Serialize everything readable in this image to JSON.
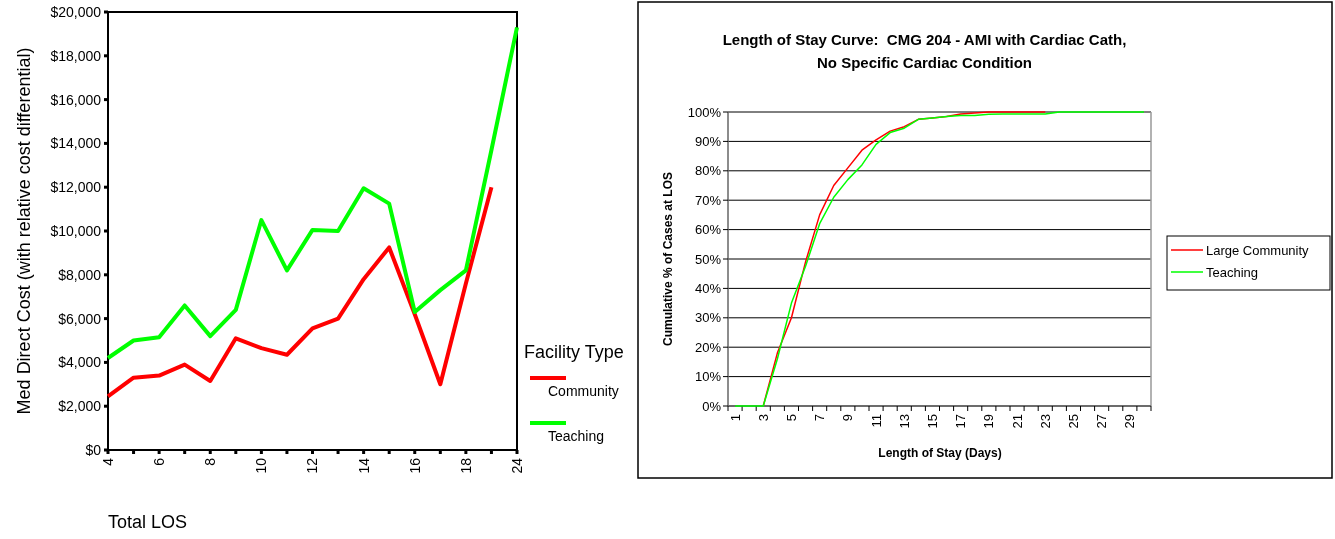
{
  "chart_data": [
    {
      "type": "line",
      "xlabel": "Total LOS",
      "ylabel": "Med Direct Cost (with relative cost differential)",
      "legend_title": "Facility Type",
      "legend": "right",
      "categories": [
        "4",
        null,
        "6",
        null,
        "8",
        null,
        "10",
        null,
        "12",
        null,
        "14",
        null,
        "16",
        null,
        "18",
        null,
        "24"
      ],
      "series": [
        {
          "name": "Community",
          "color": "#ff0000",
          "values": [
            2450,
            3300,
            3400,
            3900,
            3150,
            5100,
            4650,
            4350,
            5550,
            6000,
            7800,
            9250,
            6200,
            3000,
            7600,
            12000,
            null
          ]
        },
        {
          "name": "Teaching",
          "color": "#00ff00",
          "values": [
            4200,
            5000,
            5150,
            6600,
            5200,
            6400,
            10500,
            8200,
            10050,
            10000,
            11950,
            11250,
            6300,
            7300,
            8200,
            13700,
            19300
          ]
        }
      ],
      "ylim": [
        0,
        20000
      ],
      "yticks": [
        {
          "value": 0,
          "label": "$0"
        },
        {
          "value": 2000,
          "label": "$2,000"
        },
        {
          "value": 4000,
          "label": "$4,000"
        },
        {
          "value": 6000,
          "label": "$6,000"
        },
        {
          "value": 8000,
          "label": "$8,000"
        },
        {
          "value": 10000,
          "label": "$10,000"
        },
        {
          "value": 12000,
          "label": "$12,000"
        },
        {
          "value": 14000,
          "label": "$14,000"
        },
        {
          "value": 16000,
          "label": "$16,000"
        },
        {
          "value": 18000,
          "label": "$18,000"
        },
        {
          "value": 20000,
          "label": "$20,000"
        }
      ]
    },
    {
      "type": "line",
      "title": "Length of Stay Curve:  CMG 204 - AMI with Cardiac Cath, No Specific Cardiac Condition",
      "xlabel": "Length of Stay (Days)",
      "ylabel": "Cumulative % of Cases at LOS",
      "legend": "right",
      "grid": "y",
      "categories": [
        "1",
        null,
        "3",
        null,
        "5",
        null,
        "7",
        null,
        "9",
        null,
        "11",
        null,
        "13",
        null,
        "15",
        null,
        "17",
        null,
        "19",
        null,
        "21",
        null,
        "23",
        null,
        "25",
        null,
        "27",
        null,
        "29",
        null
      ],
      "series": [
        {
          "name": "Large Community",
          "color": "#ff0000",
          "values": [
            null,
            null,
            0,
            18,
            30,
            49,
            65,
            75,
            81,
            87,
            90.5,
            93.5,
            95,
            97.5,
            98,
            98.5,
            99.3,
            99.7,
            100,
            100,
            100,
            100,
            100,
            null,
            null,
            null,
            null,
            null,
            null,
            null
          ]
        },
        {
          "name": "Teaching",
          "color": "#00ff00",
          "values": [
            0,
            0,
            0,
            16,
            35,
            47.5,
            62,
            71,
            77,
            82,
            89,
            93,
            94.5,
            97.5,
            98,
            98.5,
            98.8,
            98.8,
            99.2,
            99.3,
            99.3,
            99.3,
            99.3,
            100,
            100,
            100,
            100,
            100,
            100,
            100
          ]
        }
      ],
      "ylim": [
        0,
        100
      ],
      "yticks": [
        {
          "value": 0,
          "label": "0%"
        },
        {
          "value": 10,
          "label": "10%"
        },
        {
          "value": 20,
          "label": "20%"
        },
        {
          "value": 30,
          "label": "30%"
        },
        {
          "value": 40,
          "label": "40%"
        },
        {
          "value": 50,
          "label": "50%"
        },
        {
          "value": 60,
          "label": "60%"
        },
        {
          "value": 70,
          "label": "70%"
        },
        {
          "value": 80,
          "label": "80%"
        },
        {
          "value": 90,
          "label": "90%"
        },
        {
          "value": 100,
          "label": "100%"
        }
      ]
    }
  ]
}
